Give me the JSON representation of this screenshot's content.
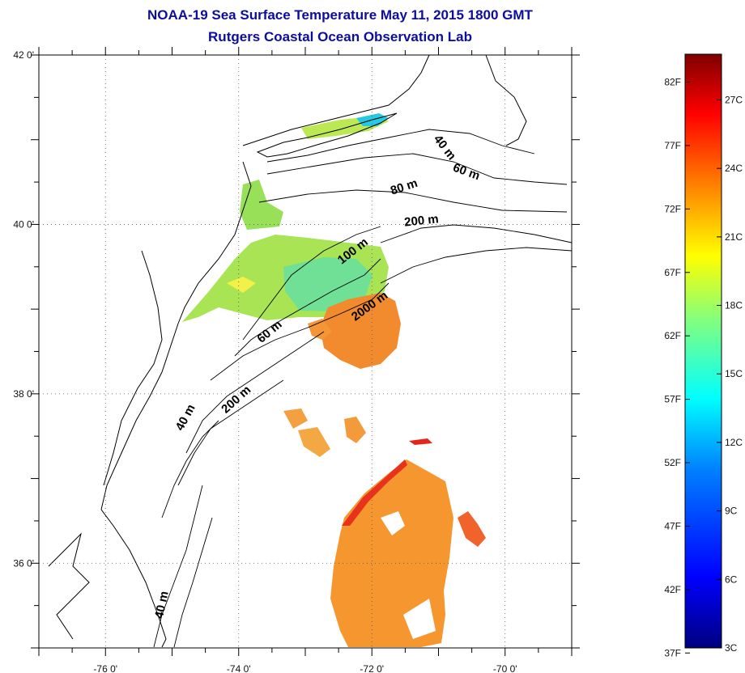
{
  "title": "NOAA-19 Sea Surface Temperature May 11, 2015 1800 GMT",
  "subtitle": "Rutgers Coastal Ocean Observation Lab",
  "map": {
    "lon_range": [
      -77.0,
      -69.0
    ],
    "lat_range": [
      35.0,
      42.0
    ],
    "lon_ticks": [
      {
        "value": -76,
        "label": "-76 0'"
      },
      {
        "value": -74,
        "label": "-74 0'"
      },
      {
        "value": -72,
        "label": "-72 0'"
      },
      {
        "value": -70,
        "label": "-70 0'"
      }
    ],
    "lat_ticks": [
      {
        "value": 42,
        "label": "42 0'"
      },
      {
        "value": 40,
        "label": "40 0'"
      },
      {
        "value": 38,
        "label": "38 0'"
      },
      {
        "value": 36,
        "label": "36 0'"
      }
    ],
    "grid": "dotted",
    "isobath_labels": [
      {
        "text": "40 m",
        "lon": -70.95,
        "lat": 40.88,
        "angle": 52
      },
      {
        "text": "60 m",
        "lon": -70.6,
        "lat": 40.58,
        "angle": 20
      },
      {
        "text": "80 m",
        "lon": -71.5,
        "lat": 40.4,
        "angle": -18
      },
      {
        "text": "200 m",
        "lon": -71.25,
        "lat": 40.0,
        "angle": -6
      },
      {
        "text": "100 m",
        "lon": -72.25,
        "lat": 39.65,
        "angle": -38
      },
      {
        "text": "2000 m",
        "lon": -72.0,
        "lat": 39.0,
        "angle": -36
      },
      {
        "text": "60 m",
        "lon": -73.5,
        "lat": 38.7,
        "angle": -40
      },
      {
        "text": "200 m",
        "lon": -74.0,
        "lat": 37.9,
        "angle": -42
      },
      {
        "text": "40 m",
        "lon": -74.75,
        "lat": 37.7,
        "angle": -62
      },
      {
        "text": "40 m",
        "lon": -75.1,
        "lat": 35.5,
        "angle": -78
      }
    ]
  },
  "colorbar": {
    "min_c": 3,
    "max_c": 29,
    "fahrenheit_labels": [
      "82F",
      "77F",
      "72F",
      "67F",
      "62F",
      "57F",
      "52F",
      "47F",
      "42F",
      "37F"
    ],
    "celsius_labels": [
      "27C",
      "24C",
      "21C",
      "18C",
      "15C",
      "12C",
      "9C",
      "6C",
      "3C"
    ],
    "colors": [
      "#00007f",
      "#0000ff",
      "#0080ff",
      "#00ffff",
      "#80ff80",
      "#ffff00",
      "#ff8000",
      "#ff0000",
      "#7f0000"
    ]
  }
}
